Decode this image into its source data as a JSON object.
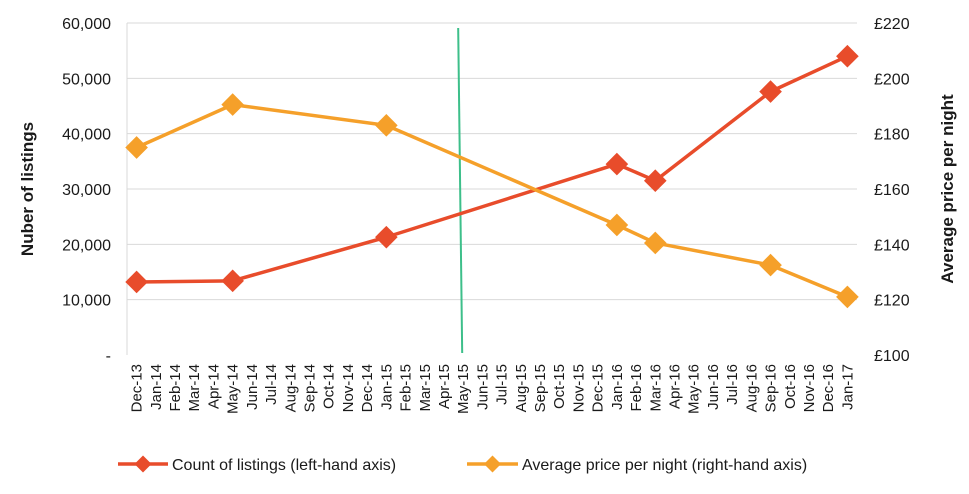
{
  "chart_data": {
    "type": "line",
    "title": "",
    "ylabel_left": "Nuber of listings",
    "ylabel_right": "Average price per night",
    "left_ticks": [
      "-",
      "10,000",
      "20,000",
      "30,000",
      "40,000",
      "50,000",
      "60,000"
    ],
    "right_ticks": [
      "£100",
      "£120",
      "£140",
      "£160",
      "£180",
      "£200",
      "£220"
    ],
    "ylim_left": [
      0,
      60000
    ],
    "ylim_right": [
      100,
      220
    ],
    "x_categories": [
      "Dec-13",
      "Jan-14",
      "Feb-14",
      "Mar-14",
      "Apr-14",
      "May-14",
      "Jun-14",
      "Jul-14",
      "Aug-14",
      "Sep-14",
      "Oct-14",
      "Nov-14",
      "Dec-14",
      "Jan-15",
      "Feb-15",
      "Mar-15",
      "Apr-15",
      "May-15",
      "Jun-15",
      "Jul-15",
      "Aug-15",
      "Sep-15",
      "Oct-15",
      "Nov-15",
      "Dec-15",
      "Jan-16",
      "Feb-16",
      "Mar-16",
      "Apr-16",
      "May-16",
      "Jun-16",
      "Jul-16",
      "Aug-16",
      "Sep-16",
      "Oct-16",
      "Nov-16",
      "Dec-16",
      "Jan-17"
    ],
    "series": [
      {
        "name": "Count of listings (left-hand axis)",
        "axis": "left",
        "color": "#e84c2b",
        "x": [
          "Dec-13",
          "May-14",
          "Jan-15",
          "Jan-16",
          "Mar-16",
          "Sep-16",
          "Jan-17"
        ],
        "values": [
          13200,
          13400,
          21300,
          34500,
          31500,
          47600,
          54000
        ]
      },
      {
        "name": "Average price per night (right-hand axis)",
        "axis": "right",
        "color": "#f5a02a",
        "x": [
          "Dec-13",
          "May-14",
          "Jan-15",
          "Jan-16",
          "Mar-16",
          "Sep-16",
          "Jan-17"
        ],
        "values": [
          175,
          190.5,
          183,
          147,
          140.5,
          132.5,
          121
        ]
      }
    ],
    "vertical_marker": {
      "at": "May-15",
      "color": "#3dbf8a"
    },
    "legend_position": "bottom",
    "grid": true
  }
}
